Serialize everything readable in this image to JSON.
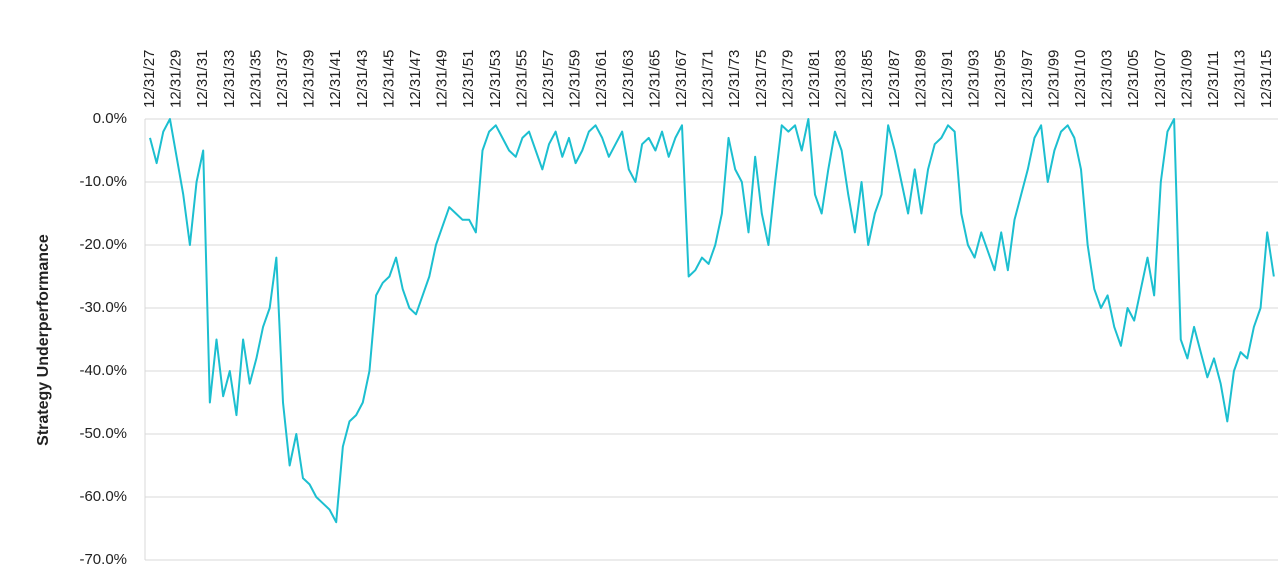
{
  "chart_data": {
    "type": "line",
    "y_label": "Strategy Underperformance",
    "categories": [
      "12/31/27",
      null,
      null,
      null,
      "12/31/29",
      null,
      null,
      null,
      "12/31/31",
      null,
      null,
      null,
      "12/31/33",
      null,
      null,
      null,
      "12/31/35",
      null,
      null,
      null,
      "12/31/37",
      null,
      null,
      null,
      "12/31/39",
      null,
      null,
      null,
      "12/31/41",
      null,
      null,
      null,
      "12/31/43",
      null,
      null,
      null,
      "12/31/45",
      null,
      null,
      null,
      "12/31/47",
      null,
      null,
      null,
      "12/31/49",
      null,
      null,
      null,
      "12/31/51",
      null,
      null,
      null,
      "12/31/53",
      null,
      null,
      null,
      "12/31/55",
      null,
      null,
      null,
      "12/31/57",
      null,
      null,
      null,
      "12/31/59",
      null,
      null,
      null,
      "12/31/61",
      null,
      null,
      null,
      "12/31/63",
      null,
      null,
      null,
      "12/31/65",
      null,
      null,
      null,
      "12/31/67",
      null,
      null,
      null,
      "12/31/71",
      null,
      null,
      null,
      "12/31/73",
      null,
      null,
      null,
      "12/31/75",
      null,
      null,
      null,
      "12/31/79",
      null,
      null,
      null,
      "12/31/81",
      null,
      null,
      null,
      "12/31/83",
      null,
      null,
      null,
      "12/31/85",
      null,
      null,
      null,
      "12/31/87",
      null,
      null,
      null,
      "12/31/89",
      null,
      null,
      null,
      "12/31/91",
      null,
      null,
      null,
      "12/31/93",
      null,
      null,
      null,
      "12/31/95",
      null,
      null,
      null,
      "12/31/97",
      null,
      null,
      null,
      "12/31/99",
      null,
      null,
      null,
      "12/31/10",
      null,
      null,
      null,
      "12/31/03",
      null,
      null,
      null,
      "12/31/05",
      null,
      null,
      null,
      "12/31/07",
      null,
      null,
      null,
      "12/31/09",
      null,
      null,
      null,
      "12/31/11",
      null,
      null,
      null,
      "12/31/13",
      null,
      null,
      null,
      "12/31/15",
      null
    ],
    "series": [
      {
        "name": "Strategy Underperformance",
        "color": "#1cbfd0",
        "values": [
          -3,
          -7,
          -2,
          0,
          -6,
          -12,
          -20,
          -10,
          -5,
          -45,
          -35,
          -44,
          -40,
          -47,
          -35,
          -42,
          -38,
          -33,
          -30,
          -22,
          -45,
          -55,
          -50,
          -57,
          -58,
          -60,
          -61,
          -62,
          -64,
          -52,
          -48,
          -47,
          -45,
          -40,
          -28,
          -26,
          -25,
          -22,
          -27,
          -30,
          -31,
          -28,
          -25,
          -20,
          -17,
          -14,
          -15,
          -16,
          -16,
          -18,
          -5,
          -2,
          -1,
          -3,
          -5,
          -6,
          -3,
          -2,
          -5,
          -8,
          -4,
          -2,
          -6,
          -3,
          -7,
          -5,
          -2,
          -1,
          -3,
          -6,
          -4,
          -2,
          -8,
          -10,
          -4,
          -3,
          -5,
          -2,
          -6,
          -3,
          -1,
          -25,
          -24,
          -22,
          -23,
          -20,
          -15,
          -3,
          -8,
          -10,
          -18,
          -6,
          -15,
          -20,
          -10,
          -1,
          -2,
          -1,
          -5,
          0,
          -12,
          -15,
          -8,
          -2,
          -5,
          -12,
          -18,
          -10,
          -20,
          -15,
          -12,
          -1,
          -5,
          -10,
          -15,
          -8,
          -15,
          -8,
          -4,
          -3,
          -1,
          -2,
          -15,
          -20,
          -22,
          -18,
          -21,
          -24,
          -18,
          -24,
          -16,
          -12,
          -8,
          -3,
          -1,
          -10,
          -5,
          -2,
          -1,
          -3,
          -8,
          -20,
          -27,
          -30,
          -28,
          -33,
          -36,
          -30,
          -32,
          -27,
          -22,
          -28,
          -10,
          -2,
          0,
          -35,
          -38,
          -33,
          -37,
          -41,
          -38,
          -42,
          -48,
          -40,
          -37,
          -38,
          -33,
          -30,
          -18,
          -25
        ]
      }
    ],
    "ylim": [
      -70,
      0
    ],
    "yticks": [
      {
        "value": 0,
        "label": "0.0%"
      },
      {
        "value": -10,
        "label": "-10.0%"
      },
      {
        "value": -20,
        "label": "-20.0%"
      },
      {
        "value": -30,
        "label": "-30.0%"
      },
      {
        "value": -40,
        "label": "-40.0%"
      },
      {
        "value": -50,
        "label": "-50.0%"
      },
      {
        "value": -60,
        "label": "-60.0%"
      },
      {
        "value": -70,
        "label": "-70.0%"
      }
    ],
    "grid": true
  }
}
